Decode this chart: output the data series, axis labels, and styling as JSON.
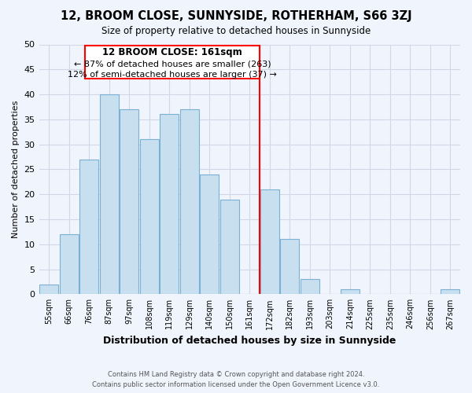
{
  "title": "12, BROOM CLOSE, SUNNYSIDE, ROTHERHAM, S66 3ZJ",
  "subtitle": "Size of property relative to detached houses in Sunnyside",
  "xlabel": "Distribution of detached houses by size in Sunnyside",
  "ylabel": "Number of detached properties",
  "footer_line1": "Contains HM Land Registry data © Crown copyright and database right 2024.",
  "footer_line2": "Contains public sector information licensed under the Open Government Licence v3.0.",
  "bin_labels": [
    "55sqm",
    "66sqm",
    "76sqm",
    "87sqm",
    "97sqm",
    "108sqm",
    "119sqm",
    "129sqm",
    "140sqm",
    "150sqm",
    "161sqm",
    "172sqm",
    "182sqm",
    "193sqm",
    "203sqm",
    "214sqm",
    "225sqm",
    "235sqm",
    "246sqm",
    "256sqm",
    "267sqm"
  ],
  "bar_heights": [
    2,
    12,
    27,
    40,
    37,
    31,
    36,
    37,
    24,
    19,
    0,
    21,
    11,
    3,
    0,
    1,
    0,
    0,
    0,
    0,
    1
  ],
  "bar_color": "#c8dff0",
  "bar_edge_color": "#7ab0d4",
  "vline_color": "red",
  "annotation_title": "12 BROOM CLOSE: 161sqm",
  "annotation_line1": "← 87% of detached houses are smaller (263)",
  "annotation_line2": "12% of semi-detached houses are larger (37) →",
  "annotation_box_color": "white",
  "annotation_box_edge_color": "red",
  "ylim": [
    0,
    50
  ],
  "yticks": [
    0,
    5,
    10,
    15,
    20,
    25,
    30,
    35,
    40,
    45,
    50
  ],
  "grid_color": "#d0d8e8",
  "background_color": "#f0f4fc"
}
